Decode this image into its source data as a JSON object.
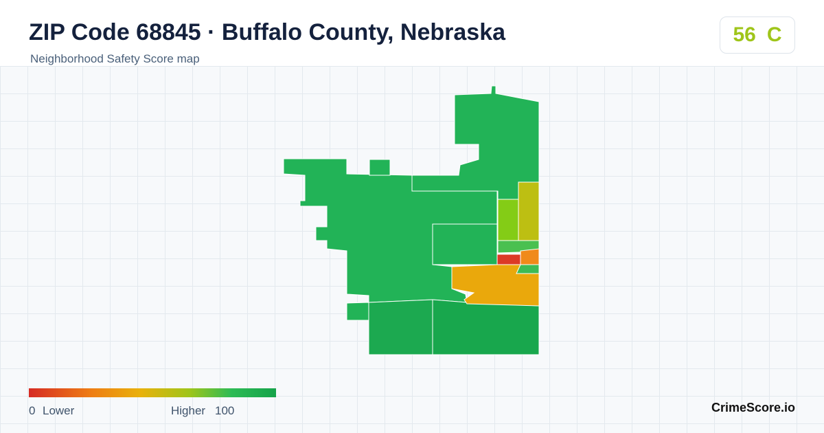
{
  "header": {
    "title": "ZIP Code 68845 · Buffalo County, Nebraska",
    "subtitle": "Neighborhood Safety Score map"
  },
  "badge": {
    "score": 56,
    "grade": "C"
  },
  "legend": {
    "min": 0,
    "min_label": "Lower",
    "max_label": "Higher",
    "max": 100
  },
  "brand": "CrimeScore.io"
}
